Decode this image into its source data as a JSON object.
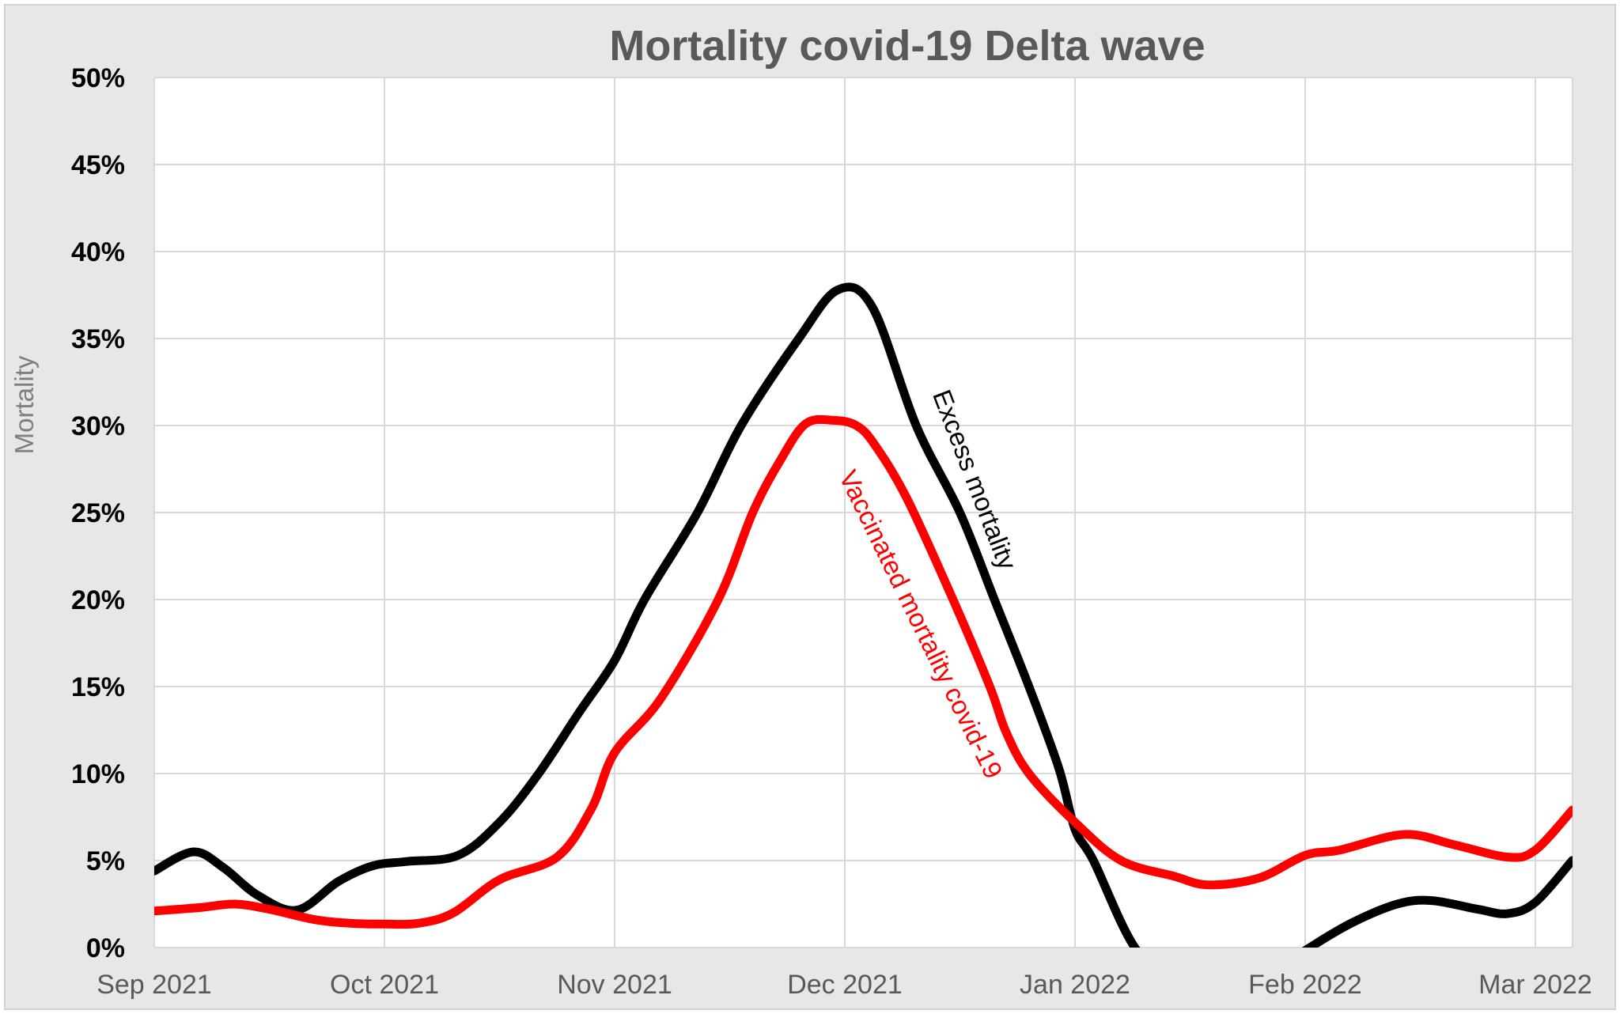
{
  "window": {
    "background": "#ffffff",
    "chart_background": "#e7e7e7",
    "plot_background": "#ffffff",
    "frame_border": "#d2d2d2"
  },
  "chart_data": {
    "type": "line",
    "title": "Mortality covid-19 Delta wave",
    "title_color": "#595959",
    "ylabel": "Mortality",
    "ylabel_color": "#7f7f7f",
    "xlabel": "",
    "x_tick_labels": [
      "Sep 2021",
      "Oct 2021",
      "Nov 2021",
      "Dec 2021",
      "Jan 2022",
      "Feb 2022",
      "Mar 2022"
    ],
    "x_tick_color": "#595959",
    "y_tick_labels": [
      "0%",
      "5%",
      "10%",
      "15%",
      "20%",
      "25%",
      "30%",
      "35%",
      "40%",
      "45%",
      "50%"
    ],
    "y_tick_values": [
      0,
      5,
      10,
      15,
      20,
      25,
      30,
      35,
      40,
      45,
      50
    ],
    "y_tick_color": "#000000",
    "ylim": [
      0,
      50
    ],
    "xlim_months": [
      0,
      6.16
    ],
    "grid": {
      "show": true,
      "color": "#d9d9d9",
      "width": 2
    },
    "series": [
      {
        "name": "Excess mortality",
        "color": "#000000",
        "stroke_width": 11,
        "points_month_pct": [
          [
            0,
            4.4
          ],
          [
            0.17,
            5.5
          ],
          [
            0.3,
            4.6
          ],
          [
            0.45,
            3.0
          ],
          [
            0.62,
            2.15
          ],
          [
            0.8,
            3.8
          ],
          [
            0.95,
            4.7
          ],
          [
            1.1,
            4.95
          ],
          [
            1.32,
            5.3
          ],
          [
            1.5,
            7.2
          ],
          [
            1.67,
            10.0
          ],
          [
            1.85,
            13.6
          ],
          [
            2.0,
            16.5
          ],
          [
            2.13,
            20.0
          ],
          [
            2.36,
            25.0
          ],
          [
            2.55,
            30.0
          ],
          [
            2.8,
            35.0
          ],
          [
            2.97,
            37.8
          ],
          [
            3.12,
            36.8
          ],
          [
            3.31,
            30.0
          ],
          [
            3.5,
            25.0
          ],
          [
            3.65,
            20.0
          ],
          [
            3.8,
            15.0
          ],
          [
            3.93,
            10.3
          ],
          [
            4.0,
            6.8
          ],
          [
            4.08,
            5.0
          ],
          [
            4.26,
            0.0
          ],
          [
            4.45,
            -2.2
          ],
          [
            4.62,
            -2.9
          ],
          [
            4.85,
            -1.5
          ],
          [
            5.02,
            0.0
          ],
          [
            5.2,
            1.4
          ],
          [
            5.4,
            2.5
          ],
          [
            5.55,
            2.7
          ],
          [
            5.75,
            2.2
          ],
          [
            5.88,
            1.95
          ],
          [
            6.0,
            2.6
          ],
          [
            6.16,
            5.0
          ]
        ]
      },
      {
        "name": "Vaccinated mortality covid-19",
        "color": "#ff0000",
        "stroke_width": 11,
        "points_month_pct": [
          [
            0,
            2.1
          ],
          [
            0.2,
            2.3
          ],
          [
            0.35,
            2.5
          ],
          [
            0.5,
            2.2
          ],
          [
            0.7,
            1.6
          ],
          [
            0.85,
            1.4
          ],
          [
            1.0,
            1.35
          ],
          [
            1.15,
            1.4
          ],
          [
            1.3,
            2.0
          ],
          [
            1.5,
            3.9
          ],
          [
            1.75,
            5.2
          ],
          [
            1.9,
            8.0
          ],
          [
            2.0,
            11.2
          ],
          [
            2.2,
            14.3
          ],
          [
            2.45,
            20.0
          ],
          [
            2.6,
            25.0
          ],
          [
            2.72,
            28.0
          ],
          [
            2.83,
            30.1
          ],
          [
            2.95,
            30.3
          ],
          [
            3.05,
            30.0
          ],
          [
            3.13,
            28.9
          ],
          [
            3.27,
            25.8
          ],
          [
            3.47,
            20.0
          ],
          [
            3.63,
            15.0
          ],
          [
            3.7,
            12.4
          ],
          [
            3.8,
            10.0
          ],
          [
            4.0,
            7.2
          ],
          [
            4.2,
            5.0
          ],
          [
            4.43,
            4.1
          ],
          [
            4.58,
            3.6
          ],
          [
            4.8,
            4.0
          ],
          [
            5.0,
            5.3
          ],
          [
            5.15,
            5.6
          ],
          [
            5.43,
            6.5
          ],
          [
            5.65,
            5.9
          ],
          [
            5.88,
            5.2
          ],
          [
            6.0,
            5.6
          ],
          [
            6.16,
            7.9
          ]
        ]
      }
    ],
    "annotations": [
      {
        "text": "Excess mortality",
        "color": "#000000",
        "anchor_month": 3.38,
        "anchor_pct": 31.8,
        "angle_deg": 69
      },
      {
        "text": "Vaccinated mortality covid-19",
        "color": "#ff0000",
        "anchor_month": 2.973,
        "anchor_pct": 27.1,
        "angle_deg": 64
      }
    ],
    "legend_position": "inline-labels"
  }
}
